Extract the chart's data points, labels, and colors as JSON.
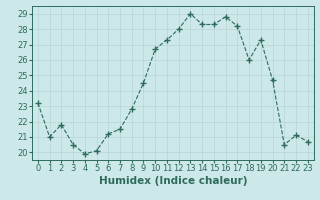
{
  "x": [
    0,
    1,
    2,
    3,
    4,
    5,
    6,
    7,
    8,
    9,
    10,
    11,
    12,
    13,
    14,
    15,
    16,
    17,
    18,
    19,
    20,
    21,
    22,
    23
  ],
  "y": [
    23.2,
    21.0,
    21.8,
    20.5,
    19.9,
    20.1,
    21.2,
    21.5,
    22.8,
    24.5,
    26.7,
    27.3,
    28.0,
    29.0,
    28.3,
    28.3,
    28.8,
    28.2,
    26.0,
    27.3,
    24.7,
    20.5,
    21.1,
    20.7
  ],
  "xlabel": "Humidex (Indice chaleur)",
  "xlim": [
    -0.5,
    23.5
  ],
  "ylim": [
    19.5,
    29.5
  ],
  "yticks": [
    20,
    21,
    22,
    23,
    24,
    25,
    26,
    27,
    28,
    29
  ],
  "xticks": [
    0,
    1,
    2,
    3,
    4,
    5,
    6,
    7,
    8,
    9,
    10,
    11,
    12,
    13,
    14,
    15,
    16,
    17,
    18,
    19,
    20,
    21,
    22,
    23
  ],
  "line_color": "#2e6b5e",
  "marker": "+",
  "marker_size": 4,
  "bg_color": "#cce8e8",
  "grid_color": "#b8d4d4",
  "xlabel_fontsize": 7.5,
  "tick_fontsize": 6.0,
  "linestyle": "--"
}
